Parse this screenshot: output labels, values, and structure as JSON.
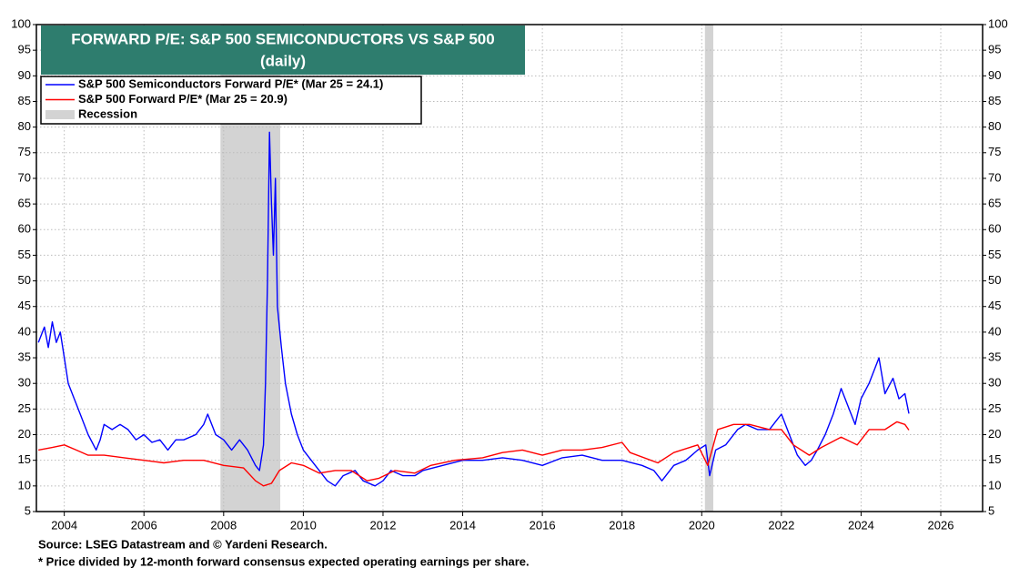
{
  "chart_data": {
    "type": "line",
    "title": "FORWARD P/E: S&P 500 SEMICONDUCTORS VS S&P 500",
    "subtitle": "(daily)",
    "xlim": [
      2003.3,
      2027.05
    ],
    "xticks": [
      2004,
      2006,
      2008,
      2010,
      2012,
      2014,
      2016,
      2018,
      2020,
      2022,
      2024,
      2026
    ],
    "ylim": [
      5,
      100
    ],
    "yticks": [
      5,
      10,
      15,
      20,
      25,
      30,
      35,
      40,
      45,
      50,
      55,
      60,
      65,
      70,
      75,
      80,
      85,
      90,
      95,
      100
    ],
    "grid": true,
    "recession_name": "Recession",
    "recession_color": "#d3d3d3",
    "recessions": [
      [
        2007.92,
        2009.42
      ],
      [
        2020.08,
        2020.29
      ]
    ],
    "series": [
      {
        "name": "S&P 500 Semiconductors Forward P/E* (Mar 25 = 24.1)",
        "color": "#0000ff",
        "x": [
          2003.35,
          2003.5,
          2003.6,
          2003.7,
          2003.8,
          2003.9,
          2004.0,
          2004.1,
          2004.2,
          2004.4,
          2004.6,
          2004.8,
          2004.9,
          2005.0,
          2005.2,
          2005.4,
          2005.6,
          2005.8,
          2006.0,
          2006.2,
          2006.4,
          2006.6,
          2006.8,
          2007.0,
          2007.3,
          2007.5,
          2007.6,
          2007.8,
          2008.0,
          2008.2,
          2008.4,
          2008.6,
          2008.8,
          2008.9,
          2009.0,
          2009.05,
          2009.1,
          2009.15,
          2009.2,
          2009.25,
          2009.3,
          2009.35,
          2009.45,
          2009.55,
          2009.7,
          2009.85,
          2010.0,
          2010.2,
          2010.4,
          2010.6,
          2010.8,
          2011.0,
          2011.3,
          2011.5,
          2011.8,
          2012.0,
          2012.2,
          2012.5,
          2012.8,
          2013.0,
          2013.5,
          2014.0,
          2014.5,
          2015.0,
          2015.5,
          2016.0,
          2016.5,
          2017.0,
          2017.5,
          2018.0,
          2018.5,
          2018.8,
          2019.0,
          2019.3,
          2019.6,
          2019.9,
          2020.1,
          2020.2,
          2020.35,
          2020.6,
          2020.9,
          2021.1,
          2021.4,
          2021.7,
          2021.9,
          2022.0,
          2022.2,
          2022.4,
          2022.6,
          2022.75,
          2022.9,
          2023.1,
          2023.3,
          2023.5,
          2023.7,
          2023.85,
          2024.0,
          2024.2,
          2024.45,
          2024.6,
          2024.8,
          2024.95,
          2025.1,
          2025.2
        ],
        "values": [
          38,
          41,
          37,
          42,
          38,
          40,
          35,
          30,
          28,
          24,
          20,
          17,
          19,
          22,
          21,
          22,
          21,
          19,
          20,
          18.5,
          19,
          17,
          19,
          19,
          20,
          22,
          24,
          20,
          19,
          17,
          19,
          17,
          14,
          13,
          18,
          30,
          50,
          79,
          65,
          55,
          70,
          45,
          37,
          30,
          24,
          20,
          17,
          15,
          13,
          11,
          10,
          12,
          13,
          11,
          10,
          11,
          13,
          12,
          12,
          13,
          14,
          15,
          15,
          15.5,
          15,
          14,
          15.5,
          16,
          15,
          15,
          14,
          13,
          11,
          14,
          15,
          17,
          18,
          12,
          17,
          18,
          21,
          22,
          21,
          21,
          23,
          24,
          20,
          16,
          14,
          15,
          17,
          20,
          24,
          29,
          25,
          22,
          27,
          30,
          35,
          28,
          31,
          27,
          28,
          24.1
        ]
      },
      {
        "name": "S&P 500 Forward P/E* (Mar 25 = 20.9)",
        "color": "#ff0000",
        "x": [
          2003.35,
          2003.7,
          2004.0,
          2004.3,
          2004.6,
          2005.0,
          2005.5,
          2006.0,
          2006.5,
          2007.0,
          2007.5,
          2008.0,
          2008.5,
          2008.8,
          2009.0,
          2009.2,
          2009.4,
          2009.7,
          2010.0,
          2010.4,
          2010.8,
          2011.2,
          2011.6,
          2011.9,
          2012.3,
          2012.8,
          2013.2,
          2013.8,
          2014.5,
          2015.0,
          2015.5,
          2016.0,
          2016.5,
          2017.0,
          2017.5,
          2018.0,
          2018.2,
          2018.9,
          2019.3,
          2019.9,
          2020.15,
          2020.4,
          2020.8,
          2021.2,
          2021.7,
          2022.0,
          2022.3,
          2022.7,
          2023.0,
          2023.5,
          2023.9,
          2024.2,
          2024.6,
          2024.9,
          2025.1,
          2025.2
        ],
        "values": [
          17,
          17.5,
          18,
          17,
          16,
          16,
          15.5,
          15,
          14.5,
          15,
          15,
          14,
          13.5,
          11,
          10,
          10.5,
          13,
          14.5,
          14,
          12.5,
          13,
          13,
          11,
          11.5,
          13,
          12.5,
          14,
          15,
          15.5,
          16.5,
          17,
          16,
          17,
          17,
          17.5,
          18.5,
          16.5,
          14.5,
          16.5,
          18,
          14,
          21,
          22,
          22,
          21,
          21,
          18,
          16,
          17.5,
          19.5,
          18,
          21,
          21,
          22.5,
          22,
          20.9
        ]
      }
    ],
    "source": "Source: LSEG Datastream and © Yardeni Research.",
    "note": "* Price divided by 12-month forward consensus expected operating earnings per share."
  }
}
